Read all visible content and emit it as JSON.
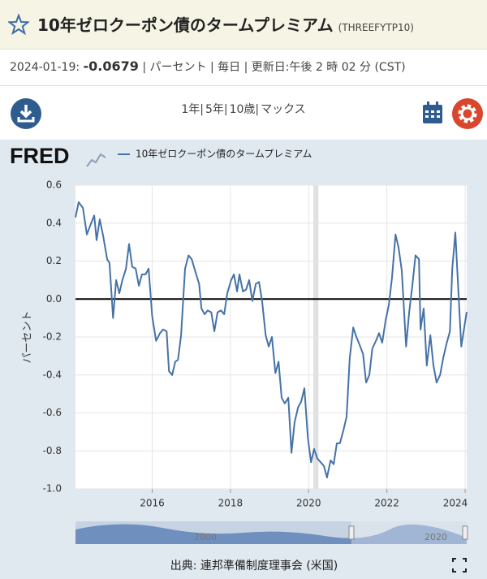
{
  "header": {
    "title": "10年ゼロクーポン債のタームプレミアム",
    "series_id": "(THREEFYTP10)"
  },
  "info": {
    "date": "2024-01-19:",
    "value": "-0.0679",
    "rest": "| パーセント | 毎日 | 更新日:午後 2 時 02 分 (CST)"
  },
  "ranges": [
    "1年|",
    "5年|",
    "10歳|",
    "マックス"
  ],
  "logo": "FRED",
  "source": "出典: 連邦準備制度理事会 (米国)",
  "navigator": {
    "labels": [
      "2000",
      "2020"
    ]
  },
  "chart_data": {
    "type": "line",
    "ylabel": "パーセント",
    "series": [
      {
        "name": "10年ゼロクーポン債のタームプレミアム",
        "color": "#4572a7",
        "x": [
          2014.04,
          2014.12,
          2014.23,
          2014.33,
          2014.44,
          2014.52,
          2014.58,
          2014.66,
          2014.75,
          2014.85,
          2014.91,
          2015.0,
          2015.08,
          2015.16,
          2015.24,
          2015.33,
          2015.41,
          2015.49,
          2015.58,
          2015.66,
          2015.74,
          2015.83,
          2015.91,
          2016.0,
          2016.1,
          2016.2,
          2016.28,
          2016.37,
          2016.43,
          2016.51,
          2016.59,
          2016.66,
          2016.74,
          2016.84,
          2016.93,
          2017.01,
          2017.11,
          2017.2,
          2017.26,
          2017.34,
          2017.42,
          2017.51,
          2017.59,
          2017.67,
          2017.76,
          2017.84,
          2017.92,
          2018.02,
          2018.09,
          2018.17,
          2018.23,
          2018.32,
          2018.4,
          2018.48,
          2018.56,
          2018.65,
          2018.73,
          2018.81,
          2018.9,
          2018.98,
          2019.06,
          2019.15,
          2019.23,
          2019.31,
          2019.39,
          2019.48,
          2019.56,
          2019.64,
          2019.73,
          2019.81,
          2019.89,
          2019.98,
          2020.06,
          2020.14,
          2020.22,
          2020.31,
          2020.39,
          2020.47,
          2020.56,
          2020.64,
          2020.72,
          2020.8,
          2020.89,
          2020.97,
          2021.05,
          2021.14,
          2021.22,
          2021.3,
          2021.39,
          2021.47,
          2021.55,
          2021.63,
          2021.72,
          2021.8,
          2021.88,
          2021.97,
          2022.05,
          2022.13,
          2022.22,
          2022.3,
          2022.38,
          2022.49,
          2022.57,
          2022.65,
          2022.73,
          2022.82,
          2022.86,
          2022.94,
          2023.02,
          2023.11,
          2023.19,
          2023.27,
          2023.36,
          2023.44,
          2023.52,
          2023.61,
          2023.67,
          2023.75,
          2023.81,
          2023.9,
          2024.04
        ],
        "values": [
          0.43,
          0.51,
          0.48,
          0.34,
          0.4,
          0.44,
          0.31,
          0.42,
          0.33,
          0.21,
          0.19,
          -0.1,
          0.1,
          0.03,
          0.1,
          0.16,
          0.29,
          0.17,
          0.16,
          0.07,
          0.13,
          0.13,
          0.16,
          -0.09,
          -0.22,
          -0.18,
          -0.16,
          -0.17,
          -0.38,
          -0.4,
          -0.33,
          -0.32,
          -0.19,
          0.16,
          0.23,
          0.21,
          0.14,
          0.08,
          -0.05,
          -0.08,
          -0.06,
          -0.07,
          -0.17,
          -0.07,
          -0.06,
          -0.08,
          0.03,
          0.1,
          0.13,
          0.04,
          0.13,
          0.04,
          0.05,
          0.1,
          -0.01,
          0.08,
          0.09,
          -0.01,
          -0.19,
          -0.25,
          -0.2,
          -0.39,
          -0.33,
          -0.52,
          -0.55,
          -0.52,
          -0.81,
          -0.65,
          -0.57,
          -0.54,
          -0.47,
          -0.73,
          -0.86,
          -0.79,
          -0.84,
          -0.86,
          -0.88,
          -0.94,
          -0.85,
          -0.87,
          -0.76,
          -0.76,
          -0.69,
          -0.62,
          -0.31,
          -0.15,
          -0.2,
          -0.24,
          -0.29,
          -0.44,
          -0.4,
          -0.26,
          -0.22,
          -0.18,
          -0.23,
          -0.11,
          -0.03,
          0.11,
          0.34,
          0.27,
          0.15,
          -0.25,
          -0.07,
          0.07,
          0.23,
          0.21,
          -0.16,
          -0.05,
          -0.35,
          -0.19,
          -0.35,
          -0.44,
          -0.4,
          -0.31,
          -0.24,
          -0.17,
          0.16,
          0.35,
          0.11,
          -0.25,
          -0.0679
        ]
      }
    ],
    "xlim": [
      2014.04,
      2024.04
    ],
    "xticks": [
      2016,
      2018,
      2020,
      2022,
      2024
    ],
    "ylim": [
      -1.0,
      0.6
    ],
    "yticks": [
      0.6,
      0.4,
      0.2,
      {
        "value": 0,
        "label": "0.0"
      },
      -0.2,
      -0.4,
      -0.6,
      -0.8,
      {
        "value": -1.0,
        "label": "-1.0"
      }
    ],
    "recessions": [
      [
        2020.12,
        2020.25
      ]
    ],
    "grid": true,
    "zero_line": 0
  }
}
